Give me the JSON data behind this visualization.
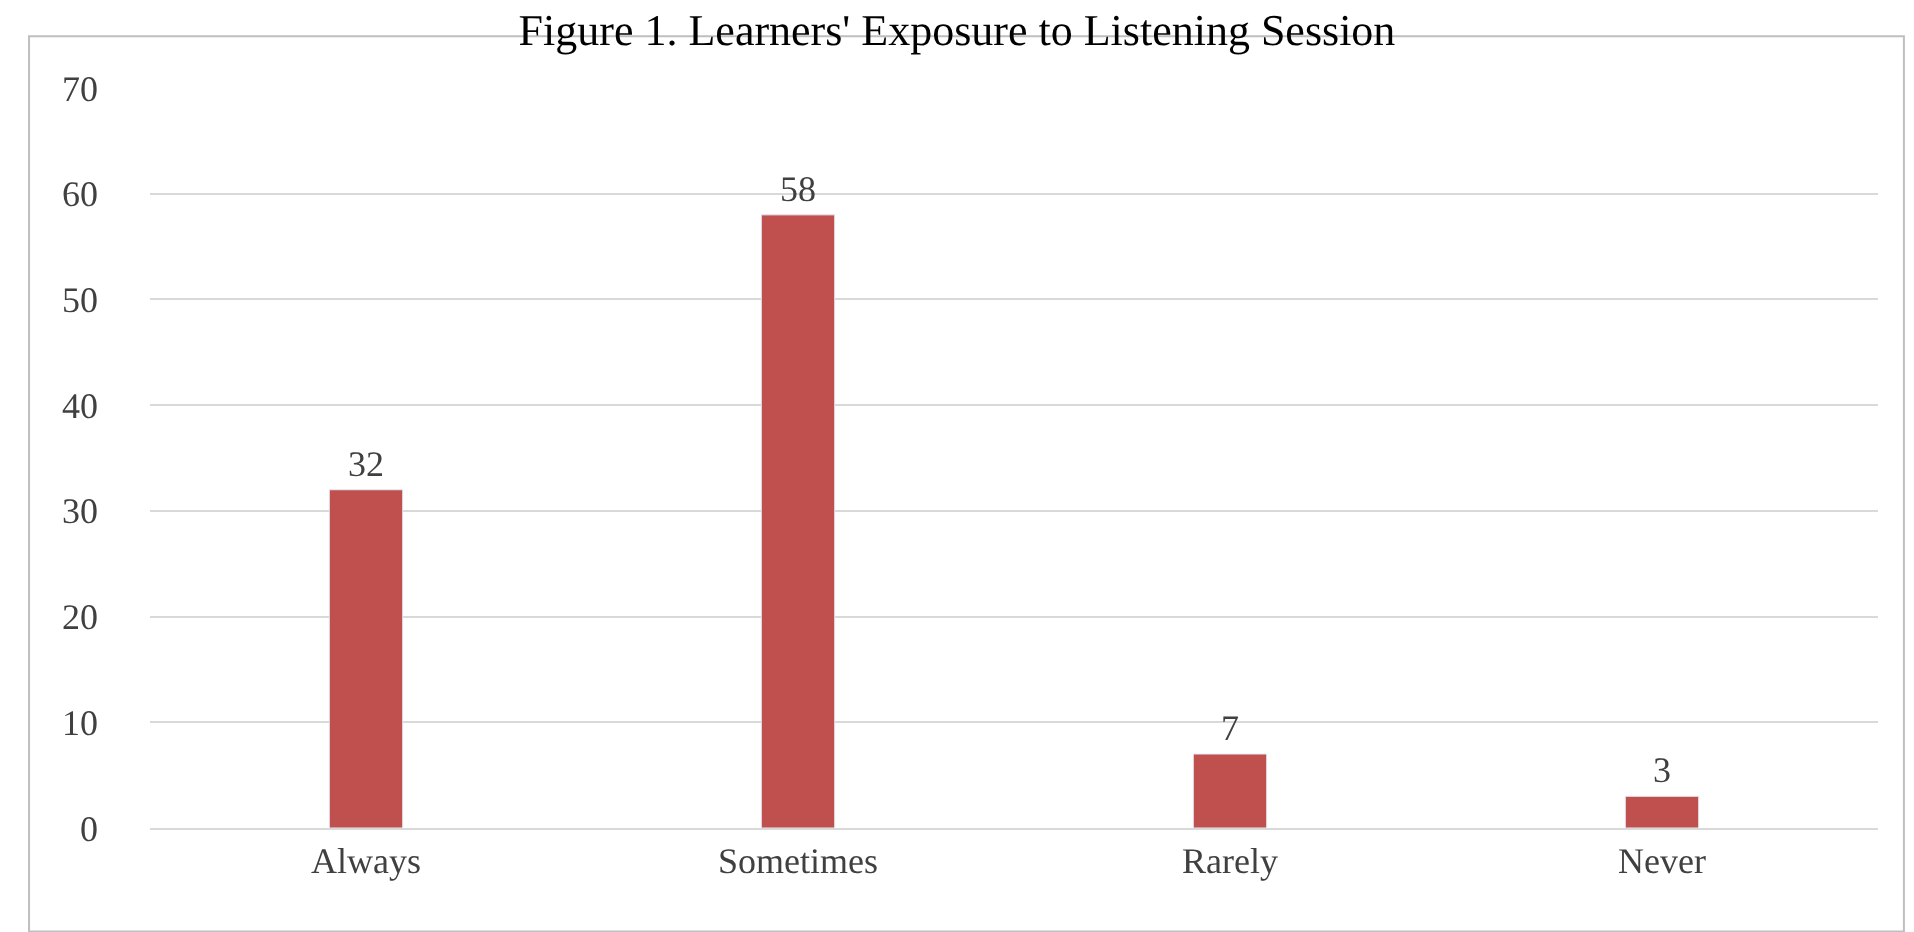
{
  "chart_data": {
    "type": "bar",
    "title": "Figure 1. Learners' Exposure to Listening Session",
    "categories": [
      "Always",
      "Sometimes",
      "Rarely",
      "Never"
    ],
    "values": [
      32,
      58,
      7,
      3
    ],
    "color": "#c0504d",
    "ylim": [
      0,
      70
    ],
    "yticks": [
      0,
      10,
      20,
      30,
      40,
      50,
      60,
      70
    ],
    "grid": "y",
    "data_labels": true,
    "legend": false
  }
}
